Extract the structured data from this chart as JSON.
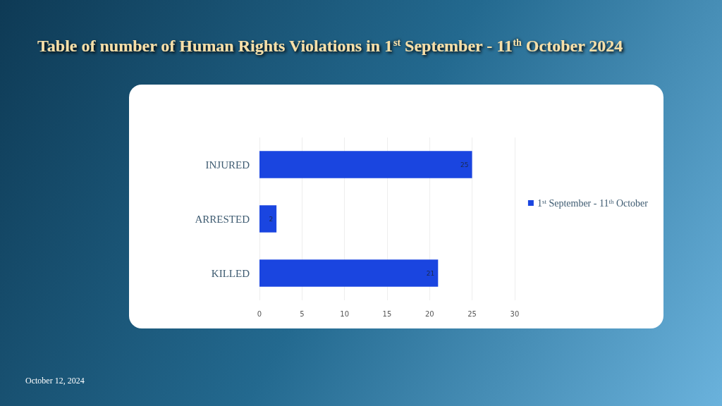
{
  "chart_data": {
    "type": "bar",
    "orientation": "horizontal",
    "title": "Table of number of Human Rights Violations in 1$^{st}$ September - 11$^{th}$ October 2024",
    "categories": [
      "INJURED",
      "ARRESTED",
      "KILLED"
    ],
    "series": [
      {
        "name": "1$^{st}$ September - 11$^{th}$ October",
        "color": "#1a45e0",
        "values": [
          25,
          2,
          21
        ]
      }
    ],
    "xlim": [
      0,
      32
    ],
    "xticks": [
      0,
      5,
      10,
      15,
      20,
      25,
      30
    ],
    "grid": "x",
    "legend": "right",
    "data_labels": true,
    "annotations": [
      "October 12, 2024"
    ]
  }
}
